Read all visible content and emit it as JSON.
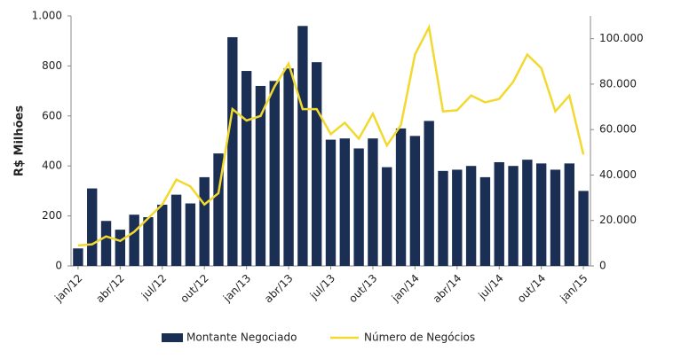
{
  "chart_data": {
    "type": "bar_line",
    "y_label": "R$ Milhões",
    "categories": [
      "jan/12",
      null,
      null,
      "abr/12",
      null,
      null,
      "jul/12",
      null,
      null,
      "out/12",
      null,
      null,
      "jan/13",
      null,
      null,
      "abr/13",
      null,
      null,
      "jul/13",
      null,
      null,
      "out/13",
      null,
      null,
      "jan/14",
      null,
      null,
      "abr/14",
      null,
      null,
      "jul/14",
      null,
      null,
      "out/14",
      null,
      null,
      "jan/15"
    ],
    "series": [
      {
        "name": "Montante Negociado",
        "color": "#1b2f55",
        "kind": "bar",
        "values": [
          70,
          310,
          180,
          145,
          205,
          195,
          245,
          285,
          250,
          355,
          450,
          915,
          780,
          720,
          740,
          790,
          960,
          815,
          505,
          510,
          470,
          510,
          395,
          550,
          520,
          580,
          380,
          385,
          400,
          355,
          415,
          400,
          425,
          410,
          385,
          410,
          300
        ]
      },
      {
        "name": "Número de Negócios",
        "color": "#f2d930",
        "kind": "line",
        "axis": "y2",
        "values": [
          9000,
          9500,
          13000,
          11000,
          15000,
          21000,
          27000,
          38000,
          35000,
          27000,
          32000,
          69000,
          64000,
          66000,
          79000,
          89000,
          69000,
          69000,
          58000,
          63000,
          56000,
          67000,
          53000,
          62000,
          93000,
          105000,
          68000,
          68500,
          75000,
          72000,
          73500,
          81000,
          93000,
          87000,
          68000,
          75000,
          49000
        ]
      }
    ],
    "ylim": [
      0,
      1000
    ],
    "yticks": [
      0,
      200,
      400,
      600,
      800,
      {
        "value": 1000,
        "label": "1.000"
      }
    ],
    "y2lim": [
      0,
      110000
    ],
    "y2ticks": [
      0,
      {
        "value": 20000,
        "label": "20.000"
      },
      {
        "value": 40000,
        "label": "40.000"
      },
      {
        "value": 60000,
        "label": "60.000"
      },
      {
        "value": 80000,
        "label": "80.000"
      },
      {
        "value": 100000,
        "label": "100.000"
      }
    ]
  }
}
